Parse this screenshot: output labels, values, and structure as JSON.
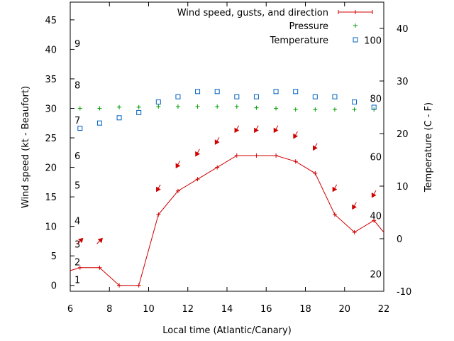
{
  "chart_data": {
    "type": "line",
    "xlabel": "Local time (Atlantic/Canary)",
    "ylabel_left": "Wind speed (kt - Beaufort)",
    "ylabel_right": "Temperature (C - F)",
    "xlim": [
      6,
      22
    ],
    "ylim_left": [
      -1,
      48
    ],
    "ylim_right": [
      -10,
      45
    ],
    "x_ticks": [
      "6",
      "8",
      "10",
      "12",
      "14",
      "16",
      "18",
      "20",
      "22"
    ],
    "y_ticks_left": [
      "0",
      "5",
      "10",
      "15",
      "20",
      "25",
      "30",
      "35",
      "40",
      "45"
    ],
    "y_ticks_right": [
      "-10",
      "0",
      "10",
      "20",
      "30",
      "40"
    ],
    "beaufort_labels": [
      {
        "label": "1",
        "kt": 1
      },
      {
        "label": "2",
        "kt": 4
      },
      {
        "label": "3",
        "kt": 7
      },
      {
        "label": "4",
        "kt": 11
      },
      {
        "label": "5",
        "kt": 17
      },
      {
        "label": "6",
        "kt": 22
      },
      {
        "label": "7",
        "kt": 28
      },
      {
        "label": "8",
        "kt": 34
      },
      {
        "label": "9",
        "kt": 41
      }
    ],
    "fahrenheit_labels": [
      {
        "label": "20",
        "celsius": -6.7
      },
      {
        "label": "40",
        "celsius": 4.4
      },
      {
        "label": "60",
        "celsius": 15.6
      },
      {
        "label": "80",
        "celsius": 26.7
      },
      {
        "label": "100",
        "celsius": 37.8
      }
    ],
    "legend_position": "top-right",
    "series": [
      {
        "name": "Wind speed, gusts, and direction",
        "color": "#d00000",
        "x": [
          5.5,
          6.5,
          7.5,
          8.5,
          9.5,
          10.5,
          11.5,
          12.5,
          13.5,
          14.5,
          15.5,
          16.5,
          17.5,
          18.5,
          19.5,
          20.5,
          21.5,
          22.5
        ],
        "values": [
          2,
          3,
          3,
          0,
          0,
          12,
          16,
          18,
          20,
          22,
          22,
          22,
          21,
          19,
          12,
          9,
          11,
          7
        ]
      },
      {
        "name": "Pressure",
        "color": "#00a000",
        "x": [
          6.5,
          7.5,
          8.5,
          9.5,
          10.5,
          11.5,
          12.5,
          13.5,
          14.5,
          15.5,
          16.5,
          17.5,
          18.5,
          19.5,
          20.5,
          21.5
        ],
        "values": [
          30,
          30,
          30.2,
          30.2,
          30.3,
          30.3,
          30.3,
          30.3,
          30.3,
          30.1,
          30,
          29.8,
          29.8,
          29.8,
          29.8,
          29.8
        ]
      },
      {
        "name": "Temperature",
        "color": "#0060c0",
        "x": [
          6.5,
          7.5,
          8.5,
          9.5,
          10.5,
          11.5,
          12.5,
          13.5,
          14.5,
          15.5,
          16.5,
          17.5,
          18.5,
          19.5,
          20.5,
          21.5
        ],
        "values": [
          21,
          22,
          23,
          24,
          26,
          27,
          28,
          28,
          27,
          27,
          28,
          28,
          27,
          27,
          26,
          25
        ]
      }
    ],
    "wind_arrows": [
      {
        "x": 6.5,
        "kt": 7.5,
        "from_deg": 225
      },
      {
        "x": 7.5,
        "kt": 7.5,
        "from_deg": 225
      },
      {
        "x": 10.5,
        "kt": 16.5,
        "from_deg": 30
      },
      {
        "x": 11.5,
        "kt": 20.5,
        "from_deg": 30
      },
      {
        "x": 12.5,
        "kt": 22.5,
        "from_deg": 30
      },
      {
        "x": 13.5,
        "kt": 24.5,
        "from_deg": 30
      },
      {
        "x": 14.5,
        "kt": 26.5,
        "from_deg": 30
      },
      {
        "x": 15.5,
        "kt": 26.5,
        "from_deg": 30
      },
      {
        "x": 16.5,
        "kt": 26.5,
        "from_deg": 30
      },
      {
        "x": 17.5,
        "kt": 25.5,
        "from_deg": 30
      },
      {
        "x": 18.5,
        "kt": 23.5,
        "from_deg": 30
      },
      {
        "x": 19.5,
        "kt": 16.5,
        "from_deg": 30
      },
      {
        "x": 20.5,
        "kt": 13.5,
        "from_deg": 30
      },
      {
        "x": 21.5,
        "kt": 15.5,
        "from_deg": 30
      }
    ]
  }
}
